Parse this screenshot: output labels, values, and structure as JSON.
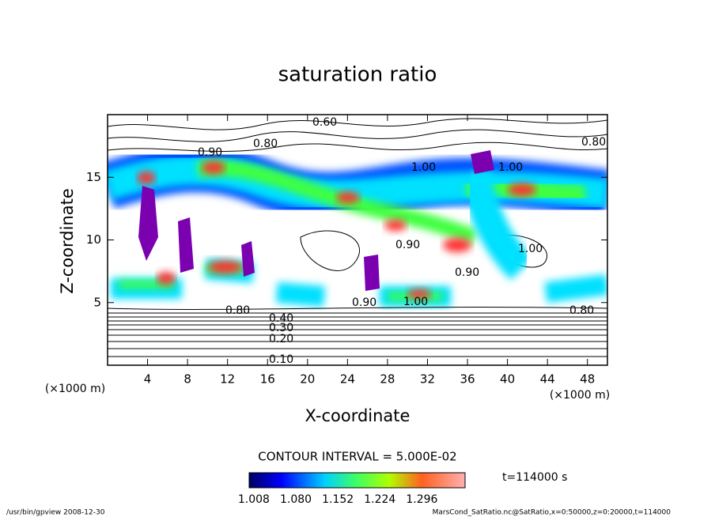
{
  "chart_data": {
    "type": "contour",
    "title": "saturation ratio",
    "x_label": "X-coordinate",
    "y_label": "Z-coordinate",
    "y_unit": "(×1000 m)",
    "x_unit": "(×1000 m)",
    "xlim": [
      0,
      50
    ],
    "xticks": [
      4,
      8,
      12,
      16,
      20,
      24,
      28,
      32,
      36,
      40,
      44,
      48
    ],
    "ylim": [
      0,
      20
    ],
    "yticks": [
      5,
      10,
      15
    ],
    "contour_interval": "CONTOUR INTERVAL = 5.000E-02",
    "colorbar_lim": [
      1.0,
      1.37
    ],
    "colorbar_ticks": [
      1.008,
      {
        "value": 1.08,
        "label": "1.080"
      },
      1.152,
      1.224,
      1.296
    ],
    "time_label": "t=114000 s",
    "contour_labels": [
      "0.60",
      "0.90",
      "0.80",
      "1.00",
      "0.80",
      "1.00",
      "0.90",
      "0.80",
      "0.90",
      "0.80",
      "0.40",
      "0.30",
      "0.20",
      "0.10",
      "1.00",
      "0.90",
      "1.00"
    ],
    "footer_left": "/usr/bin/gpview   2008-12-30",
    "footer_right": "MarsCond_SatRatio.nc@SatRatio,x=0:50000,z=0:20000,t=114000"
  }
}
